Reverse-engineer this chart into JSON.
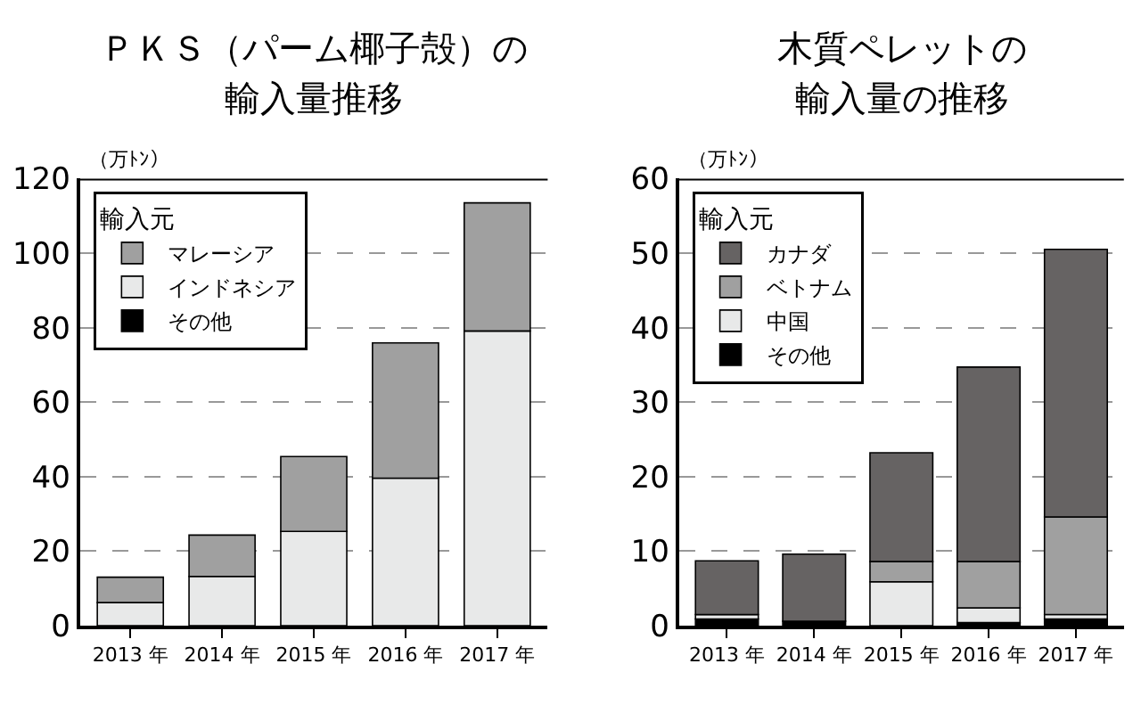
{
  "chart_data": [
    {
      "type": "bar",
      "title": "ＰＫＳ（パーム椰子殻）の",
      "subtitle": "輸入量推移",
      "ylabel": "（万ﾄﾝ）",
      "legend_title": "輸入元",
      "stacked": true,
      "legend": "top left",
      "grid": "y",
      "line_style": "dashed",
      "categories": [
        "2013 年",
        "2014 年",
        "2015 年",
        "2016 年",
        "2017 年"
      ],
      "ylim": [
        0,
        120
      ],
      "yticks": [
        0,
        20,
        40,
        60,
        80,
        100,
        120
      ],
      "series": [
        {
          "name": "その他",
          "color": "#000000",
          "values": [
            0,
            0,
            0,
            0,
            0
          ]
        },
        {
          "name": "インドネシア",
          "color": "#e8e9e9",
          "values": [
            6.2,
            13.2,
            25.3,
            39.6,
            79.1
          ]
        },
        {
          "name": "マレーシア",
          "color": "#a0a0a0",
          "values": [
            6.8,
            11.1,
            20.1,
            36.3,
            34.4
          ]
        }
      ]
    },
    {
      "type": "bar",
      "title": "木質ペレットの",
      "subtitle": "輸入量の推移",
      "ylabel": "（万ﾄﾝ）",
      "legend_title": "輸入元",
      "stacked": true,
      "legend": "top left",
      "grid": "y",
      "line_style": "dashed",
      "categories": [
        "2013 年",
        "2014 年",
        "2015 年",
        "2016 年",
        "2017 年"
      ],
      "ylim": [
        0,
        60
      ],
      "yticks": [
        0,
        10,
        20,
        30,
        40,
        50,
        60
      ],
      "series": [
        {
          "name": "その他",
          "color": "#000000",
          "values": [
            0.9,
            0.6,
            0,
            0.4,
            0.9
          ]
        },
        {
          "name": "中国",
          "color": "#e8e9e9",
          "values": [
            0.6,
            0,
            5.9,
            2.0,
            0.6
          ]
        },
        {
          "name": "ベトナム",
          "color": "#a0a0a0",
          "values": [
            0,
            0,
            2.7,
            6.2,
            13.1
          ]
        },
        {
          "name": "カナダ",
          "color": "#666363",
          "values": [
            7.2,
            9.0,
            14.6,
            26.1,
            35.9
          ]
        }
      ]
    }
  ]
}
